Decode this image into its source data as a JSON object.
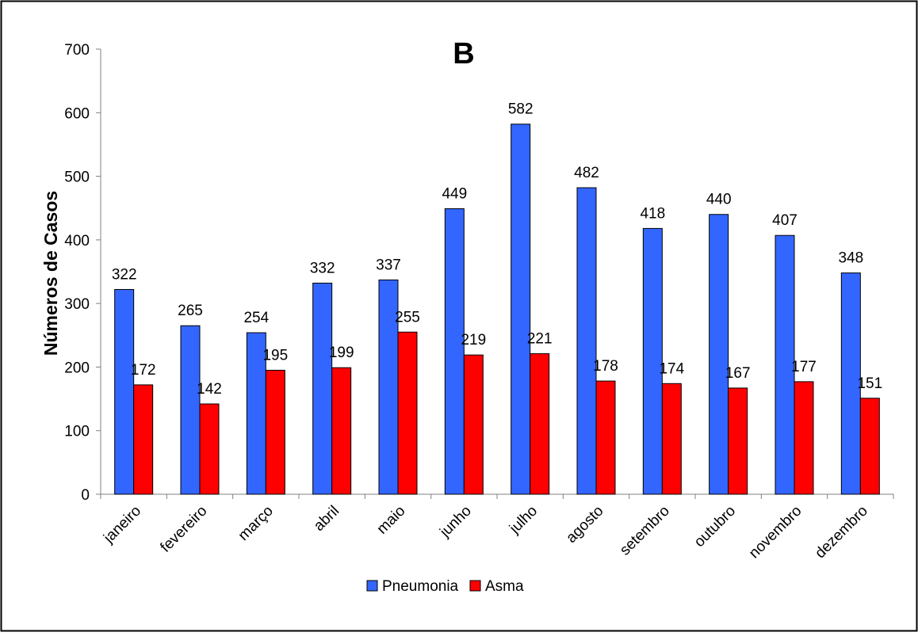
{
  "chart_data": {
    "type": "bar",
    "title": "B",
    "xlabel": "",
    "ylabel": "Números de Casos",
    "ylim": [
      0,
      700
    ],
    "yticks": [
      0,
      100,
      200,
      300,
      400,
      500,
      600,
      700
    ],
    "grid": false,
    "legend_position": "bottom",
    "categories": [
      "janeiro",
      "fevereiro",
      "março",
      "abril",
      "maio",
      "junho",
      "julho",
      "agosto",
      "setembro",
      "outubro",
      "novembro",
      "dezembro"
    ],
    "series": [
      {
        "name": "Pneumonia",
        "color": "#3366ff",
        "values": [
          322,
          265,
          254,
          332,
          337,
          449,
          582,
          482,
          418,
          440,
          407,
          348
        ]
      },
      {
        "name": "Asma",
        "color": "#ff0000",
        "values": [
          172,
          142,
          195,
          199,
          255,
          219,
          221,
          178,
          174,
          167,
          177,
          151
        ]
      }
    ]
  }
}
